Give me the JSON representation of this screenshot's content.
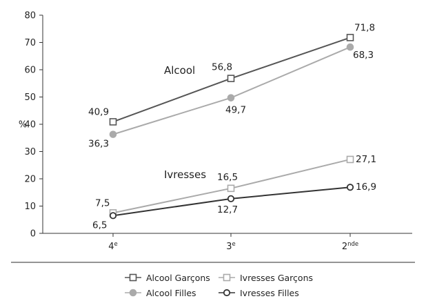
{
  "chart_data": {
    "type": "line",
    "categories": [
      {
        "main": "4",
        "sup": "e"
      },
      {
        "main": "3",
        "sup": "e"
      },
      {
        "main": "2",
        "sup": "nde"
      }
    ],
    "ylabel": "%",
    "ylim": [
      0,
      80
    ],
    "yticks": [
      0,
      10,
      20,
      30,
      40,
      50,
      60,
      70,
      80
    ],
    "grid": false,
    "legend_position": "bottom",
    "annotations": [
      "Alcool",
      "Ivresses"
    ],
    "series": [
      {
        "name": "Alcool Garçons",
        "values": [
          40.9,
          56.8,
          71.8
        ],
        "labels": [
          "40,9",
          "56,8",
          "71,8"
        ],
        "color": "#555555",
        "marker": "open-square"
      },
      {
        "name": "Alcool Filles",
        "values": [
          36.3,
          49.7,
          68.3
        ],
        "labels": [
          "36,3",
          "49,7",
          "68,3"
        ],
        "color": "#aaaaaa",
        "marker": "filled-circle"
      },
      {
        "name": "Ivresses Garçons",
        "values": [
          7.5,
          16.5,
          27.1
        ],
        "labels": [
          "7,5",
          "16,5",
          "27,1"
        ],
        "color": "#aaaaaa",
        "marker": "open-square"
      },
      {
        "name": "Ivresses Filles",
        "values": [
          6.5,
          12.7,
          16.9
        ],
        "labels": [
          "6,5",
          "12,7",
          "16,9"
        ],
        "color": "#333333",
        "marker": "open-circle"
      }
    ]
  }
}
